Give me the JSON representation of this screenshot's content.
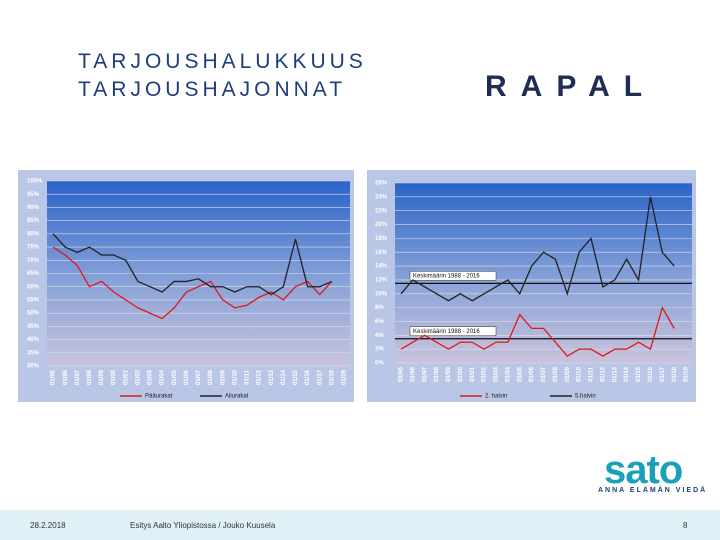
{
  "header": {
    "title": "TARJOUSHALUKKUUS",
    "subtitle": "TARJOUSHAJONNAT",
    "logo": "RAPAL"
  },
  "brand": {
    "logo": "sato",
    "tagline": "ANNA ELÄMÄN VIEDÄ"
  },
  "footer": {
    "date": "28.2.2018",
    "text": "Esitys Aalto Yliopistossa / Jouko Kuusela",
    "page": "8"
  },
  "chart_data": [
    {
      "type": "line",
      "categories": [
        "01/95",
        "01/96",
        "01/97",
        "01/98",
        "01/99",
        "01/00",
        "01/01",
        "01/02",
        "01/03",
        "01/04",
        "01/05",
        "01/06",
        "01/07",
        "01/08",
        "01/09",
        "01/10",
        "01/11",
        "01/12",
        "01/13",
        "01/14",
        "01/15",
        "01/16",
        "01/17",
        "01/18",
        "01/19"
      ],
      "series": [
        {
          "name": "Pääurakat",
          "color": "#e01818",
          "values": [
            75,
            72,
            68,
            60,
            62,
            58,
            55,
            52,
            50,
            48,
            52,
            58,
            60,
            62,
            55,
            52,
            53,
            56,
            58,
            55,
            60,
            62,
            57,
            62,
            null
          ]
        },
        {
          "name": "Aliurakat",
          "color": "#222222",
          "values": [
            80,
            75,
            73,
            75,
            72,
            72,
            70,
            62,
            60,
            58,
            62,
            62,
            63,
            60,
            60,
            58,
            60,
            60,
            57,
            60,
            78,
            60,
            60,
            62,
            null
          ]
        }
      ],
      "ylim": [
        30,
        100
      ],
      "yticks": [
        {
          "value": 30,
          "label": "30%"
        },
        {
          "value": 35,
          "label": "35%"
        },
        {
          "value": 40,
          "label": "40%"
        },
        {
          "value": 45,
          "label": "45%"
        },
        {
          "value": 50,
          "label": "50%"
        },
        {
          "value": 55,
          "label": "55%"
        },
        {
          "value": 60,
          "label": "60%"
        },
        {
          "value": 65,
          "label": "65%"
        },
        {
          "value": 70,
          "label": "70%"
        },
        {
          "value": 75,
          "label": "75%"
        },
        {
          "value": 80,
          "label": "80%"
        },
        {
          "value": 85,
          "label": "85%"
        },
        {
          "value": 90,
          "label": "90%"
        },
        {
          "value": 95,
          "label": "95%"
        },
        {
          "value": 100,
          "label": "100%"
        }
      ],
      "grid": true
    },
    {
      "type": "line",
      "categories": [
        "01/95",
        "01/96",
        "01/97",
        "01/98",
        "01/99",
        "01/00",
        "01/01",
        "01/02",
        "01/03",
        "01/04",
        "01/05",
        "01/06",
        "01/07",
        "01/08",
        "01/09",
        "01/10",
        "01/11",
        "01/12",
        "01/13",
        "01/14",
        "01/15",
        "01/16",
        "01/17",
        "01/18",
        "01/19"
      ],
      "series": [
        {
          "name": "2. halvin",
          "color": "#e01818",
          "values": [
            2,
            3,
            4,
            3,
            2,
            3,
            3,
            2,
            3,
            3,
            7,
            5,
            5,
            3,
            1,
            2,
            2,
            1,
            2,
            2,
            3,
            2,
            8,
            5,
            null
          ]
        },
        {
          "name": "5.halvin",
          "color": "#222222",
          "values": [
            10,
            12,
            11,
            10,
            9,
            10,
            9,
            10,
            11,
            12,
            10,
            14,
            16,
            15,
            10,
            16,
            18,
            11,
            12,
            15,
            12,
            24,
            16,
            14,
            null
          ]
        }
      ],
      "ylim": [
        0,
        26
      ],
      "yticks": [
        {
          "value": 0,
          "label": "0%"
        },
        {
          "value": 2,
          "label": "2%"
        },
        {
          "value": 4,
          "label": "4%"
        },
        {
          "value": 6,
          "label": "6%"
        },
        {
          "value": 8,
          "label": "8%"
        },
        {
          "value": 10,
          "label": "10%"
        },
        {
          "value": 12,
          "label": "12%"
        },
        {
          "value": 14,
          "label": "14%"
        },
        {
          "value": 16,
          "label": "16%"
        },
        {
          "value": 18,
          "label": "18%"
        },
        {
          "value": 20,
          "label": "20%"
        },
        {
          "value": 22,
          "label": "22%"
        },
        {
          "value": 24,
          "label": "24%"
        },
        {
          "value": 26,
          "label": "26%"
        }
      ],
      "grid": true,
      "reference_lines": [
        {
          "label": "Keskimäärin 1988 - 2016",
          "value": 11.5
        },
        {
          "label": "Keskimäärin 1988 - 2016",
          "value": 3.5
        }
      ]
    }
  ]
}
